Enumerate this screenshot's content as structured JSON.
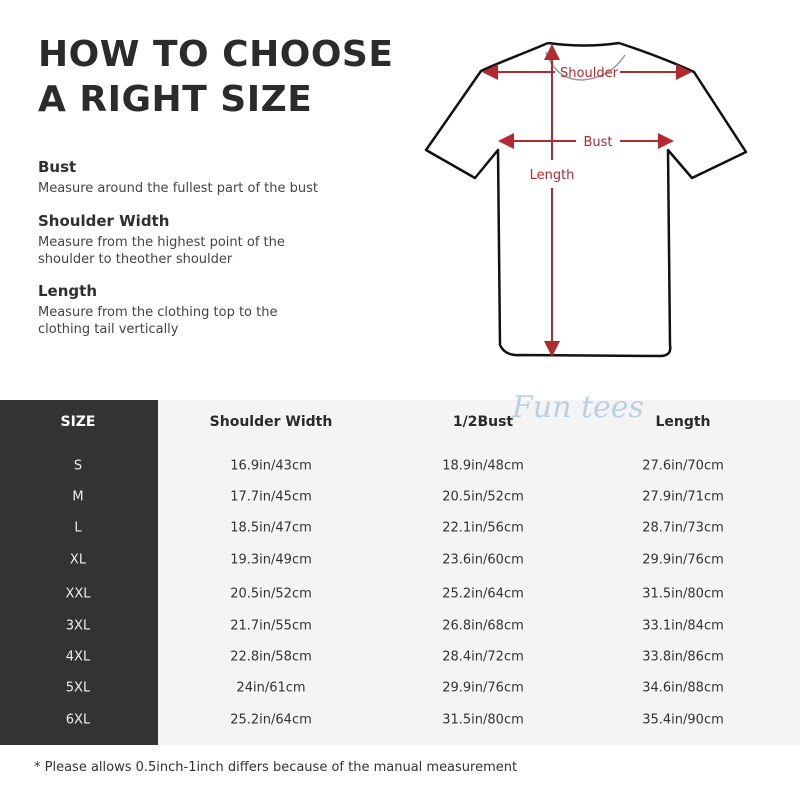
{
  "heading": {
    "line1": "HOW TO CHOOSE",
    "line2": "A RIGHT SIZE"
  },
  "measures": [
    {
      "term": "Bust",
      "desc": "Measure around the fullest part of the bust"
    },
    {
      "term": "Shoulder Width",
      "desc": "Measure from the highest point of the shoulder to theother shoulder"
    },
    {
      "term": "Length",
      "desc": "Measure from the clothing top to the clothing tail vertically"
    }
  ],
  "diagram": {
    "shoulder": "Shoulder",
    "bust": "Bust",
    "length": "Length",
    "arrow_color": "#b22a2f"
  },
  "watermark": "Fun tees",
  "table": {
    "headers": [
      "SIZE",
      "Shoulder Width",
      "1/2Bust",
      "Length"
    ],
    "rows": [
      [
        "S",
        "16.9in/43cm",
        "18.9in/48cm",
        "27.6in/70cm"
      ],
      [
        "M",
        "17.7in/45cm",
        "20.5in/52cm",
        "27.9in/71cm"
      ],
      [
        "L",
        "18.5in/47cm",
        "22.1in/56cm",
        "28.7in/73cm"
      ],
      [
        "XL",
        "19.3in/49cm",
        "23.6in/60cm",
        "29.9in/76cm"
      ],
      [
        "XXL",
        "20.5in/52cm",
        "25.2in/64cm",
        "31.5in/80cm"
      ],
      [
        "3XL",
        "21.7in/55cm",
        "26.8in/68cm",
        "33.1in/84cm"
      ],
      [
        "4XL",
        "22.8in/58cm",
        "28.4in/72cm",
        "33.8in/86cm"
      ],
      [
        "5XL",
        "24in/61cm",
        "29.9in/76cm",
        "34.6in/88cm"
      ],
      [
        "6XL",
        "25.2in/64cm",
        "31.5in/80cm",
        "35.4in/90cm"
      ]
    ]
  },
  "footnote": "* Please allows 0.5inch-1inch differs because of the  manual measurement"
}
